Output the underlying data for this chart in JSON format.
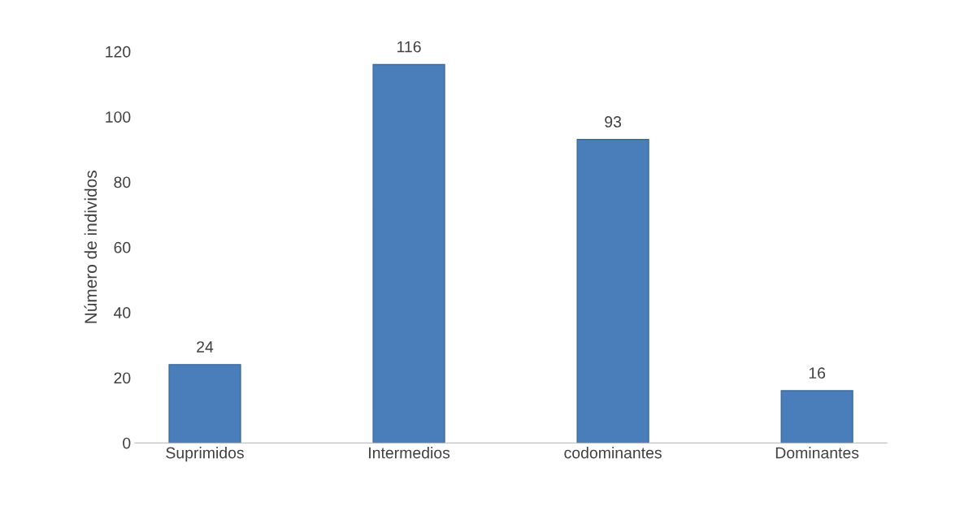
{
  "chart_data": {
    "type": "bar",
    "ylabel": "Número de individos",
    "categories": [
      "Suprimidos",
      "Intermedios",
      "codominantes",
      "Dominantes"
    ],
    "values": [
      24,
      116,
      93,
      16
    ],
    "color": "#4a7ebb",
    "ylim": [
      0,
      120
    ],
    "yticks": [
      0,
      20,
      40,
      60,
      80,
      100,
      120
    ],
    "data_labels": true,
    "grid": false,
    "legend": false
  }
}
